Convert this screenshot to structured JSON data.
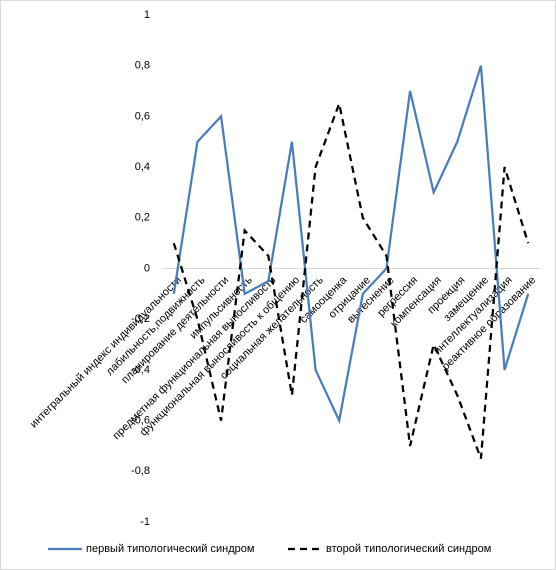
{
  "chart_data": {
    "type": "line",
    "categories": [
      "интегральный индекс индивидуальности",
      "лабильность,подвижность",
      "планирование деятельности",
      "импульсивность",
      "предметная функциональная выносливость",
      "функциональная выносливость к общению",
      "социальная желательность",
      "самооценка",
      "отрицание",
      "вытеснение",
      "регрессия",
      "компенсация",
      "проекция",
      "замещение",
      "интеллектуализация",
      "реактивное образование"
    ],
    "series": [
      {
        "name": "первый типологический синдром",
        "color": "#4a7ebb",
        "dash": false,
        "values": [
          -0.1,
          0.5,
          0.6,
          -0.1,
          -0.05,
          0.5,
          -0.4,
          -0.6,
          -0.1,
          0,
          0.7,
          0.3,
          0.5,
          0.8,
          -0.4,
          -0.1
        ]
      },
      {
        "name": "второй типологический синдром",
        "color": "#000000",
        "dash": true,
        "values": [
          0.1,
          -0.2,
          -0.6,
          0.15,
          0.05,
          -0.5,
          0.4,
          0.65,
          0.2,
          0.05,
          -0.7,
          -0.3,
          -0.5,
          -0.75,
          0.4,
          0.1
        ]
      }
    ],
    "ylim": [
      -1,
      1
    ],
    "yticks": [
      {
        "value": -1,
        "label": "-1"
      },
      {
        "value": -0.8,
        "label": "-0,8"
      },
      {
        "value": -0.6,
        "label": "-0,6"
      },
      {
        "value": -0.4,
        "label": "-0,4"
      },
      {
        "value": -0.2,
        "label": "-0,2"
      },
      0,
      {
        "value": 0.2,
        "label": "0,2"
      },
      {
        "value": 0.4,
        "label": "0,4"
      },
      {
        "value": 0.6,
        "label": "0,6"
      },
      {
        "value": 0.8,
        "label": "0,8"
      },
      1
    ],
    "legend": "bottom"
  }
}
